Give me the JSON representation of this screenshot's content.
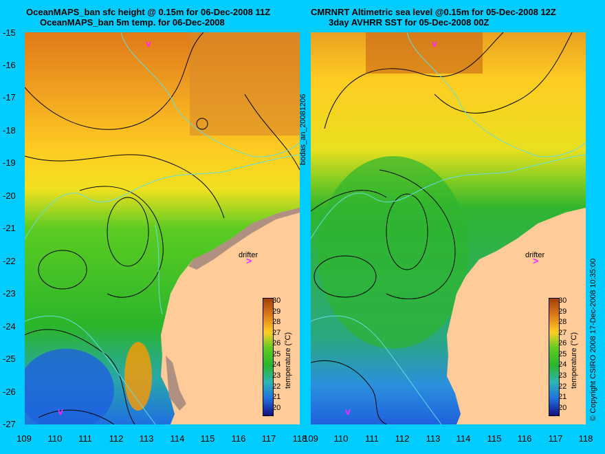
{
  "left_panel": {
    "title_line1": "OceanMAPS_ban sfc height @ 0.15m for 06-Dec-2008 11Z",
    "title_line2": "OceanMAPS_ban 5m temp. for 06-Dec-2008"
  },
  "right_panel": {
    "title_line1": "CMRNRT Altimetric sea level  @0.15m  for 05-Dec-2008 12Z",
    "title_line2": "3day AVHRR SST for 05-Dec-2008 00Z"
  },
  "lat_labels": [
    "-15",
    "-16",
    "-17",
    "-18",
    "-19",
    "-20",
    "-21",
    "-22",
    "-23",
    "-24",
    "-25",
    "-26",
    "-27"
  ],
  "lon_labels": [
    "109",
    "110",
    "111",
    "112",
    "113",
    "114",
    "115",
    "116",
    "117",
    "118"
  ],
  "colorbar": {
    "label": "temperature (°C)",
    "ticks": [
      "30",
      "29",
      "28",
      "27",
      "26",
      "25",
      "24",
      "23",
      "22",
      "21",
      "20"
    ]
  },
  "drifter_label": "drifter",
  "side_label": "bodas_an_20081206",
  "copyright": "© Copyright CSIRO 2008  17-Dec-2008 10:35:00",
  "colors": {
    "background": "#00ccff",
    "land": "#ffcc99",
    "coast_mask": "#b09080",
    "drifter": "#ff22ff",
    "contour_ssh": "#000000",
    "contour_bathy": "#66dddd"
  }
}
